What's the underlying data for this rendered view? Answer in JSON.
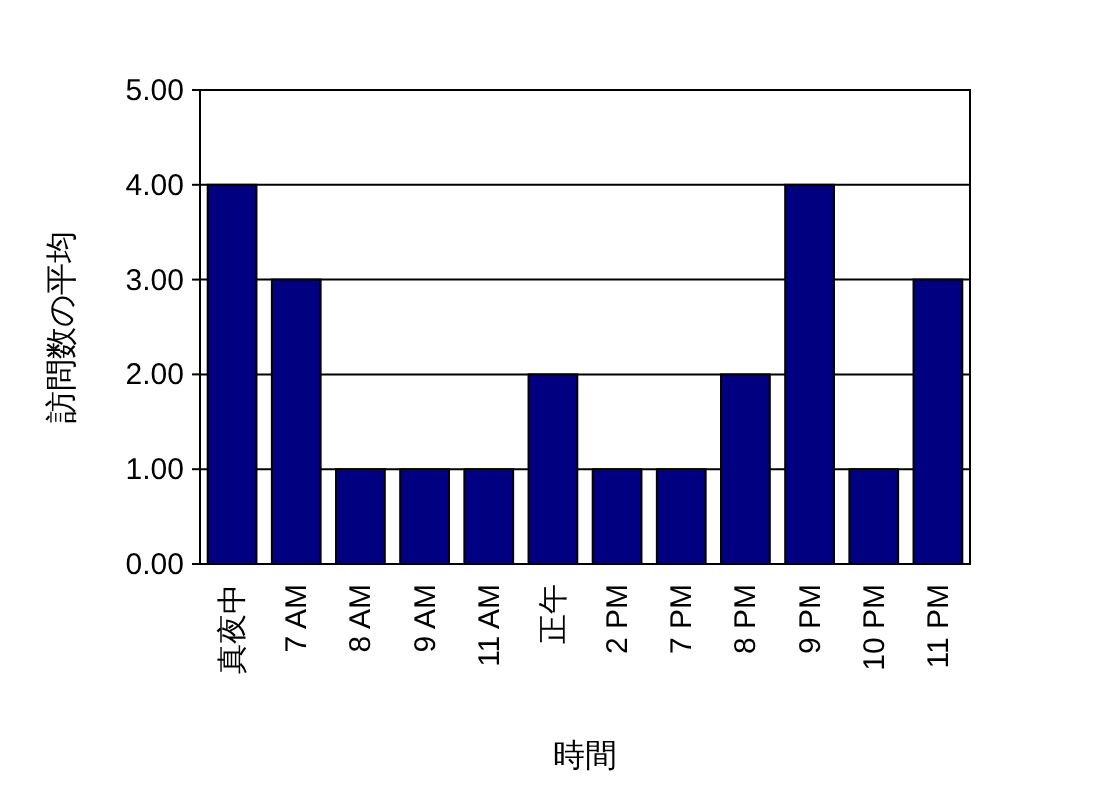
{
  "chart_data": {
    "type": "bar",
    "xlabel": "時間",
    "ylabel": "訪問数の平均",
    "categories": [
      "真夜中",
      "7 AM",
      "8 AM",
      "9 AM",
      "11 AM",
      "正午",
      "2 PM",
      "7 PM",
      "8 PM",
      "9 PM",
      "10 PM",
      "11 PM"
    ],
    "values": [
      4,
      3,
      1,
      1,
      1,
      2,
      1,
      1,
      2,
      4,
      1,
      3
    ],
    "color": "#000080",
    "ylim": [
      0,
      5
    ],
    "yticks": [
      {
        "value": 0,
        "label": "0.00"
      },
      {
        "value": 1,
        "label": "1.00"
      },
      {
        "value": 2,
        "label": "2.00"
      },
      {
        "value": 3,
        "label": "3.00"
      },
      {
        "value": 4,
        "label": "4.00"
      },
      {
        "value": 5,
        "label": "5.00"
      }
    ],
    "grid": "y"
  }
}
